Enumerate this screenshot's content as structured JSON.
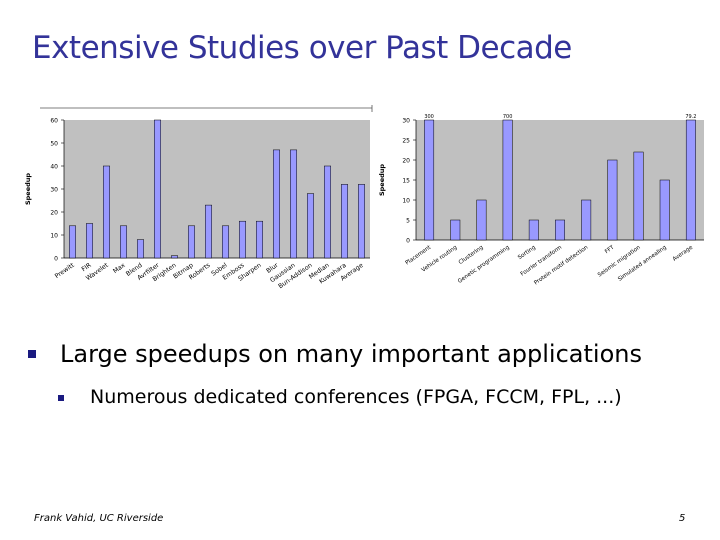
{
  "slide": {
    "title": "Extensive Studies over Past Decade",
    "bullet_main": "Large speedups on many important applications",
    "bullet_sub": "Numerous dedicated conferences (FPGA, FCCM, FPL, ...)",
    "footer": "Frank Vahid, UC Riverside",
    "page_number": "5"
  },
  "colors": {
    "title": "#333399",
    "bar_fill": "#9999ff",
    "bar_stroke": "#000000",
    "plot_bg": "#c0c0c0",
    "bullet": "#1a1a80"
  },
  "chart_data": [
    {
      "type": "bar",
      "ylabel": "Speedup",
      "ylim": [
        0,
        60
      ],
      "yticks": [
        0,
        10,
        20,
        30,
        40,
        50,
        60
      ],
      "grid": false,
      "categories": [
        "Prewitt",
        "FIR",
        "Wavelet",
        "Max",
        "Blend",
        "Avrfilter",
        "Brighten",
        "Bitmap",
        "Roberts",
        "Sobel",
        "Emboss",
        "Sharpen",
        "Blur",
        "Gaussian",
        "Bun-Addison",
        "Median",
        "Kuwahara",
        "Average"
      ],
      "values": [
        14,
        15,
        40,
        14,
        8,
        60,
        1,
        14,
        23,
        14,
        16,
        16,
        47,
        47,
        28,
        40,
        32,
        32
      ],
      "tick_labels": [
        "Prewitt",
        "FIR",
        "Wavelet",
        "Max",
        "Blend",
        "Avrfilter",
        "Brighten",
        "Bitmap",
        "Roberts",
        "Sobel",
        "Emboss",
        "Sharpen",
        "Blur",
        "Gaussian",
        "Bun-Addison",
        "Median",
        "Kuwahara",
        "Average"
      ]
    },
    {
      "type": "bar",
      "ylabel": "Speedup",
      "ylim": [
        0,
        30
      ],
      "yticks": [
        0,
        5,
        10,
        15,
        20,
        25,
        30
      ],
      "grid": false,
      "categories": [
        "Placement",
        "Vehicle routing",
        "Clustering",
        "Genetic programming",
        "Sorting",
        "Fourier transform",
        "Protein motif detection",
        "FFT",
        "Seismic migration",
        "Simulated annealing",
        "Average"
      ],
      "values": [
        30,
        5,
        10,
        30,
        5,
        5,
        10,
        20,
        22,
        15,
        30
      ],
      "bar_top_labels": [
        "300",
        "",
        "",
        "700",
        "",
        "",
        "",
        "",
        "",
        "",
        "79.2"
      ],
      "tick_labels": [
        "Placement",
        "Vehicle routing",
        "Clustering",
        "Genetic programming",
        "Sorting",
        "Fourier transform",
        "Protein motif detection",
        "FFT",
        "Seismic migration",
        "Simulated annealing",
        "Average"
      ]
    }
  ]
}
